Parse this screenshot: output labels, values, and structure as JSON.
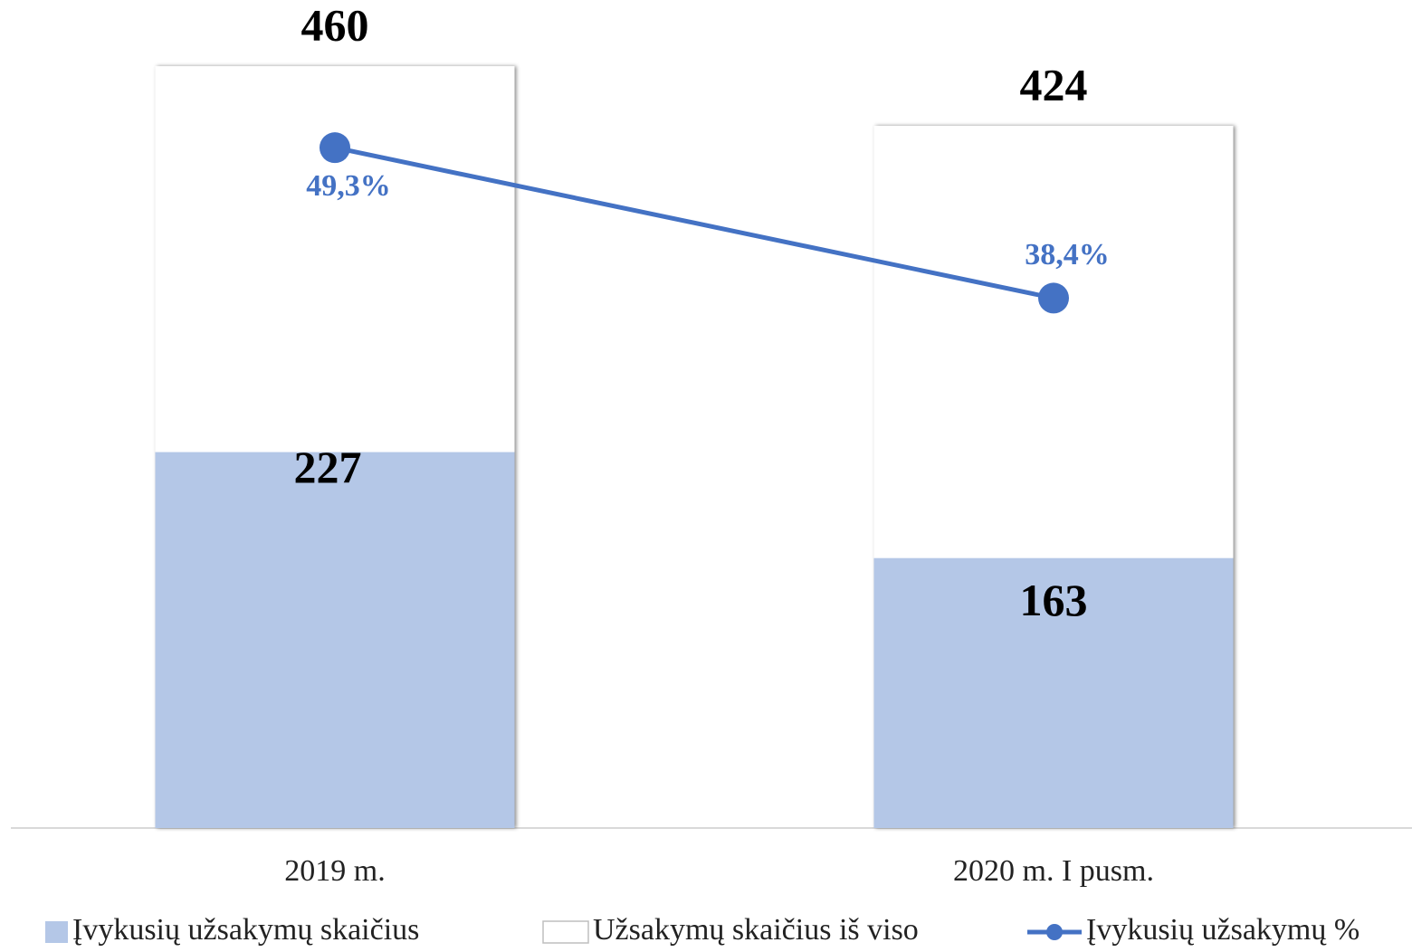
{
  "chart_data": {
    "type": "bar",
    "categories": [
      "2019 m.",
      "2020 m. I pusm."
    ],
    "series": [
      {
        "name": "Įvykusių užsakymų skaičius",
        "color": "#b4c7e7",
        "values": [
          227,
          163
        ]
      },
      {
        "name": "Užsakymų skaičius iš viso",
        "color": "#ffffff",
        "values": [
          460,
          424
        ]
      },
      {
        "name": "Įvykusių užsakymų %",
        "color": "#4472c4",
        "type": "line",
        "axis": "y2",
        "values": [
          49.3,
          38.4
        ],
        "value_labels": [
          "49,3%",
          "38,4%"
        ]
      }
    ],
    "ylim": [
      0,
      500
    ],
    "y2lim": [
      0,
      60
    ],
    "legend": "bottom"
  }
}
